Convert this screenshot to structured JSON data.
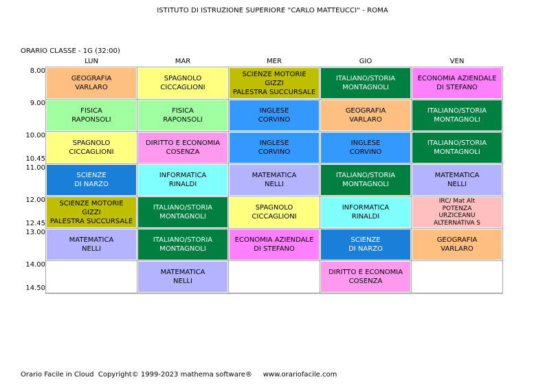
{
  "header": {
    "title": "ISTITUTO DI ISTRUZIONE SUPERIORE \"CARLO MATTEUCCI\" - ROMA",
    "class_label": "ORARIO CLASSE   -   1G  (32:00)"
  },
  "days": [
    "LUN",
    "MAR",
    "MER",
    "GIO",
    "VEN"
  ],
  "times": [
    "8.00",
    "9.00",
    "10.00",
    "10.45",
    "11.00",
    "12.00",
    "12.45",
    "13.00",
    "14.00",
    "14.50"
  ],
  "colors": {
    "geografia": "#ffbf80",
    "spagnolo": "#ffff80",
    "scienze_motorie": "#bfbf00",
    "italiano_storia": "#008040",
    "economia": "#ff80ff",
    "fisica": "#a0ff a0",
    "inglese": "#3399ff",
    "diritto": "#ff99ee",
    "scienze": "#1a7fd9",
    "informatica": "#80ffff",
    "matematica": "#b3b3ff",
    "irc": "#ffbfbf"
  },
  "schedule": {
    "lun": [
      {
        "lines": [
          "GEOGRAFIA",
          "VARLARO"
        ]
      },
      {
        "lines": [
          "FISICA",
          "RAPONSOLI"
        ]
      },
      {
        "lines": [
          "SPAGNOLO",
          "CICCAGLIONI"
        ]
      },
      {
        "lines": [
          "SCIENZE",
          "DI NARZO"
        ]
      },
      {
        "lines": [
          "SCIENZE MOTORIE",
          "GIZZI",
          "PALESTRA SUCCURSALE"
        ]
      },
      {
        "lines": [
          "MATEMATICA",
          "NELLI"
        ]
      },
      {
        "lines": []
      }
    ],
    "mar": [
      {
        "lines": [
          "SPAGNOLO",
          "CICCAGLIONI"
        ]
      },
      {
        "lines": [
          "FISICA",
          "RAPONSOLI"
        ]
      },
      {
        "lines": [
          "DIRITTO E ECONOMIA",
          "COSENZA"
        ]
      },
      {
        "lines": [
          "INFORMATICA",
          "RINALDI"
        ]
      },
      {
        "lines": [
          "ITALIANO/STORIA",
          "MONTAGNOLI"
        ]
      },
      {
        "lines": [
          "ITALIANO/STORIA",
          "MONTAGNOLI"
        ]
      },
      {
        "lines": [
          "MATEMATICA",
          "NELLI"
        ]
      }
    ],
    "mer": [
      {
        "lines": [
          "SCIENZE MOTORIE",
          "GIZZI",
          "PALESTRA SUCCURSALE"
        ]
      },
      {
        "lines": [
          "INGLESE",
          "CORVINO"
        ]
      },
      {
        "lines": [
          "INGLESE",
          "CORVINO"
        ]
      },
      {
        "lines": [
          "MATEMATICA",
          "NELLI"
        ]
      },
      {
        "lines": [
          "SPAGNOLO",
          "CICCAGLIONI"
        ]
      },
      {
        "lines": [
          "ECONOMIA AZIENDALE",
          "DI STEFANO"
        ]
      },
      {
        "lines": []
      }
    ],
    "gio": [
      {
        "lines": [
          "ITALIANO/STORIA",
          "MONTAGNOLI"
        ]
      },
      {
        "lines": [
          "GEOGRAFIA",
          "VARLARO"
        ]
      },
      {
        "lines": [
          "INGLESE",
          "CORVINO"
        ]
      },
      {
        "lines": [
          "ITALIANO/STORIA",
          "MONTAGNOLI"
        ]
      },
      {
        "lines": [
          "INFORMATICA",
          "RINALDI"
        ]
      },
      {
        "lines": [
          "SCIENZE",
          "DI NARZO"
        ]
      },
      {
        "lines": [
          "DIRITTO E ECONOMIA",
          "COSENZA"
        ]
      }
    ],
    "ven": [
      {
        "lines": [
          "ECONOMIA AZIENDALE",
          "DI STEFANO"
        ]
      },
      {
        "lines": [
          "ITALIANO/STORIA",
          "MONTAGNOLI"
        ]
      },
      {
        "lines": [
          "ITALIANO/STORIA",
          "MONTAGNOLI"
        ]
      },
      {
        "lines": [
          "MATEMATICA",
          "NELLI"
        ]
      },
      {
        "lines": [
          "IRC/ Mat Alt",
          "POTENZA",
          "URZICEANU",
          "ALTERNATIVA S"
        ]
      },
      {
        "lines": [
          "GEOGRAFIA",
          "VARLARO"
        ]
      },
      {
        "lines": []
      }
    ]
  },
  "footer": {
    "text": "Orario Facile in Cloud  Copyright© 1999-2023 mathema software®     www.orariofacile.com"
  }
}
